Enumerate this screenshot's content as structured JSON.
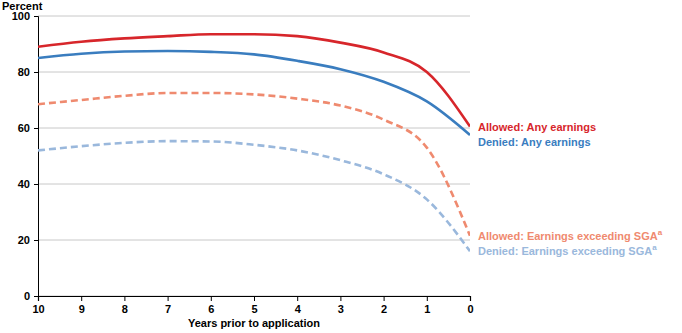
{
  "chart_data": {
    "type": "line",
    "ylabel": "Percent",
    "xlabel": "Years prior to application",
    "x": [
      10,
      9,
      8,
      7,
      6,
      5,
      4,
      3,
      2,
      1,
      0
    ],
    "xlim": [
      10,
      0
    ],
    "xticks": [
      10,
      9,
      8,
      7,
      6,
      5,
      4,
      3,
      2,
      1,
      0
    ],
    "ylim": [
      0,
      100
    ],
    "yticks": [
      0,
      20,
      40,
      60,
      80,
      100
    ],
    "grid": true,
    "series": [
      {
        "name": "Allowed: Any earnings",
        "color": "#d7262b",
        "line_style": "solid",
        "values": [
          89,
          90.8,
          92,
          92.8,
          93.5,
          93.5,
          92.8,
          90.5,
          87,
          80,
          60.5
        ]
      },
      {
        "name": "Denied: Any earnings",
        "color": "#3a7dbf",
        "line_style": "solid",
        "values": [
          85,
          86.5,
          87.3,
          87.5,
          87.2,
          86.3,
          84,
          81,
          76.5,
          69.5,
          57.5
        ]
      },
      {
        "name": "Allowed: Earnings exceeding SGA",
        "footnote": "a",
        "color": "#ef8a6f",
        "line_style": "dashed",
        "values": [
          68.5,
          70,
          71.5,
          72.5,
          72.5,
          72,
          70.5,
          68,
          63,
          53,
          21.5
        ]
      },
      {
        "name": "Denied: Earnings exceeding SGA",
        "footnote": "a",
        "color": "#9ab8dc",
        "line_style": "dashed",
        "values": [
          52,
          53.5,
          54.7,
          55.3,
          55.2,
          54,
          52,
          48.5,
          43.5,
          34.5,
          16
        ]
      }
    ]
  }
}
